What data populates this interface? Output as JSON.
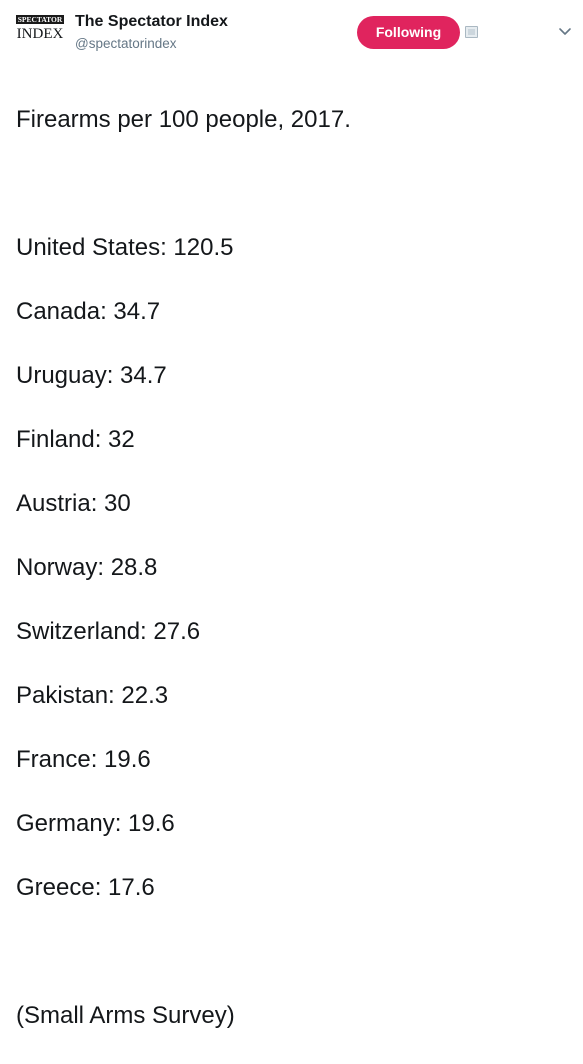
{
  "account": {
    "name": "The Spectator Index",
    "handle": "@spectatorindex",
    "avatar_top_word": "SPECTATOR",
    "avatar_bottom_word": "INDEX"
  },
  "actions": {
    "follow_label": "Following",
    "notification_icon": "notification-toggle-icon",
    "menu_icon": "chevron-down-icon"
  },
  "colors": {
    "follow_button_bg": "#e0245e",
    "text": "#14171a",
    "secondary_text": "#657786"
  },
  "tweet": {
    "title": "Firearms per 100 people, 2017.",
    "items": [
      "United States: 120.5",
      "Canada: 34.7",
      "Uruguay: 34.7",
      "Finland: 32",
      "Austria: 30",
      "Norway: 28.8",
      "Switzerland: 27.6",
      "Pakistan: 22.3",
      "France: 19.6",
      "Germany: 19.6",
      "Greece: 17.6"
    ],
    "source": "(Small Arms Survey)"
  }
}
